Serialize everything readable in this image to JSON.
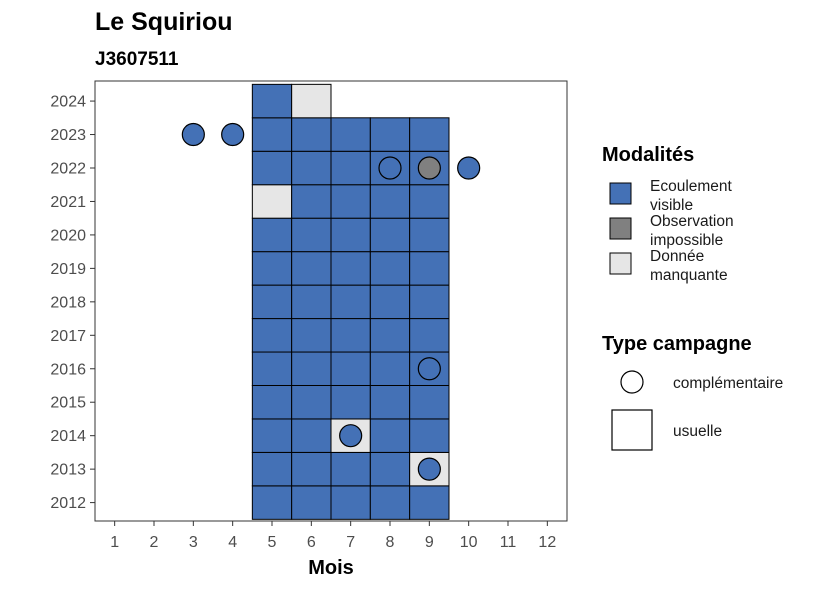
{
  "chart_data": {
    "type": "heatmap",
    "title": "Le Squiriou",
    "subtitle": "J3607511",
    "xlabel": "Mois",
    "ylabel": "",
    "x_ticks": [
      1,
      2,
      3,
      4,
      5,
      6,
      7,
      8,
      9,
      10,
      11,
      12
    ],
    "y_ticks": [
      2012,
      2013,
      2014,
      2015,
      2016,
      2017,
      2018,
      2019,
      2020,
      2021,
      2022,
      2023,
      2024
    ],
    "xlim": [
      0.5,
      12.5
    ],
    "ylim": [
      2011.45,
      2024.6
    ],
    "grid": false,
    "colors": {
      "ecoulement_visible": "#4471b6",
      "observation_impossible": "#808080",
      "donnee_manquante": "#e6e6e6"
    },
    "legend_modalites": {
      "title": "Modalités",
      "items": [
        {
          "key": "ecoulement_visible",
          "line1": "Ecoulement",
          "line2": "visible"
        },
        {
          "key": "observation_impossible",
          "line1": "Observation",
          "line2": "impossible"
        },
        {
          "key": "donnee_manquante",
          "line1": "Donnée",
          "line2": "manquante"
        }
      ]
    },
    "legend_type": {
      "title": "Type campagne",
      "items": [
        {
          "shape": "circle",
          "label": "complémentaire"
        },
        {
          "shape": "square",
          "label": "usuelle"
        }
      ]
    },
    "usuelle": [
      {
        "year": 2012,
        "month": 5,
        "m": "ecoulement_visible"
      },
      {
        "year": 2012,
        "month": 6,
        "m": "ecoulement_visible"
      },
      {
        "year": 2012,
        "month": 7,
        "m": "ecoulement_visible"
      },
      {
        "year": 2012,
        "month": 8,
        "m": "ecoulement_visible"
      },
      {
        "year": 2012,
        "month": 9,
        "m": "ecoulement_visible"
      },
      {
        "year": 2013,
        "month": 5,
        "m": "ecoulement_visible"
      },
      {
        "year": 2013,
        "month": 6,
        "m": "ecoulement_visible"
      },
      {
        "year": 2013,
        "month": 7,
        "m": "ecoulement_visible"
      },
      {
        "year": 2013,
        "month": 8,
        "m": "ecoulement_visible"
      },
      {
        "year": 2013,
        "month": 9,
        "m": "donnee_manquante"
      },
      {
        "year": 2014,
        "month": 5,
        "m": "ecoulement_visible"
      },
      {
        "year": 2014,
        "month": 6,
        "m": "ecoulement_visible"
      },
      {
        "year": 2014,
        "month": 7,
        "m": "donnee_manquante"
      },
      {
        "year": 2014,
        "month": 8,
        "m": "ecoulement_visible"
      },
      {
        "year": 2014,
        "month": 9,
        "m": "ecoulement_visible"
      },
      {
        "year": 2015,
        "month": 5,
        "m": "ecoulement_visible"
      },
      {
        "year": 2015,
        "month": 6,
        "m": "ecoulement_visible"
      },
      {
        "year": 2015,
        "month": 7,
        "m": "ecoulement_visible"
      },
      {
        "year": 2015,
        "month": 8,
        "m": "ecoulement_visible"
      },
      {
        "year": 2015,
        "month": 9,
        "m": "ecoulement_visible"
      },
      {
        "year": 2016,
        "month": 5,
        "m": "ecoulement_visible"
      },
      {
        "year": 2016,
        "month": 6,
        "m": "ecoulement_visible"
      },
      {
        "year": 2016,
        "month": 7,
        "m": "ecoulement_visible"
      },
      {
        "year": 2016,
        "month": 8,
        "m": "ecoulement_visible"
      },
      {
        "year": 2016,
        "month": 9,
        "m": "ecoulement_visible"
      },
      {
        "year": 2017,
        "month": 5,
        "m": "ecoulement_visible"
      },
      {
        "year": 2017,
        "month": 6,
        "m": "ecoulement_visible"
      },
      {
        "year": 2017,
        "month": 7,
        "m": "ecoulement_visible"
      },
      {
        "year": 2017,
        "month": 8,
        "m": "ecoulement_visible"
      },
      {
        "year": 2017,
        "month": 9,
        "m": "ecoulement_visible"
      },
      {
        "year": 2018,
        "month": 5,
        "m": "ecoulement_visible"
      },
      {
        "year": 2018,
        "month": 6,
        "m": "ecoulement_visible"
      },
      {
        "year": 2018,
        "month": 7,
        "m": "ecoulement_visible"
      },
      {
        "year": 2018,
        "month": 8,
        "m": "ecoulement_visible"
      },
      {
        "year": 2018,
        "month": 9,
        "m": "ecoulement_visible"
      },
      {
        "year": 2019,
        "month": 5,
        "m": "ecoulement_visible"
      },
      {
        "year": 2019,
        "month": 6,
        "m": "ecoulement_visible"
      },
      {
        "year": 2019,
        "month": 7,
        "m": "ecoulement_visible"
      },
      {
        "year": 2019,
        "month": 8,
        "m": "ecoulement_visible"
      },
      {
        "year": 2019,
        "month": 9,
        "m": "ecoulement_visible"
      },
      {
        "year": 2020,
        "month": 5,
        "m": "ecoulement_visible"
      },
      {
        "year": 2020,
        "month": 6,
        "m": "ecoulement_visible"
      },
      {
        "year": 2020,
        "month": 7,
        "m": "ecoulement_visible"
      },
      {
        "year": 2020,
        "month": 8,
        "m": "ecoulement_visible"
      },
      {
        "year": 2020,
        "month": 9,
        "m": "ecoulement_visible"
      },
      {
        "year": 2021,
        "month": 5,
        "m": "donnee_manquante"
      },
      {
        "year": 2021,
        "month": 6,
        "m": "ecoulement_visible"
      },
      {
        "year": 2021,
        "month": 7,
        "m": "ecoulement_visible"
      },
      {
        "year": 2021,
        "month": 8,
        "m": "ecoulement_visible"
      },
      {
        "year": 2021,
        "month": 9,
        "m": "ecoulement_visible"
      },
      {
        "year": 2022,
        "month": 5,
        "m": "ecoulement_visible"
      },
      {
        "year": 2022,
        "month": 6,
        "m": "ecoulement_visible"
      },
      {
        "year": 2022,
        "month": 7,
        "m": "ecoulement_visible"
      },
      {
        "year": 2022,
        "month": 8,
        "m": "ecoulement_visible"
      },
      {
        "year": 2022,
        "month": 9,
        "m": "ecoulement_visible"
      },
      {
        "year": 2023,
        "month": 5,
        "m": "ecoulement_visible"
      },
      {
        "year": 2023,
        "month": 6,
        "m": "ecoulement_visible"
      },
      {
        "year": 2023,
        "month": 7,
        "m": "ecoulement_visible"
      },
      {
        "year": 2023,
        "month": 8,
        "m": "ecoulement_visible"
      },
      {
        "year": 2023,
        "month": 9,
        "m": "ecoulement_visible"
      },
      {
        "year": 2024,
        "month": 5,
        "m": "ecoulement_visible"
      },
      {
        "year": 2024,
        "month": 6,
        "m": "donnee_manquante"
      }
    ],
    "complementaire": [
      {
        "year": 2023,
        "month": 3,
        "m": "ecoulement_visible"
      },
      {
        "year": 2023,
        "month": 4,
        "m": "ecoulement_visible"
      },
      {
        "year": 2022,
        "month": 8,
        "m": "ecoulement_visible"
      },
      {
        "year": 2022,
        "month": 9,
        "m": "observation_impossible"
      },
      {
        "year": 2022,
        "month": 10,
        "m": "ecoulement_visible"
      },
      {
        "year": 2016,
        "month": 9,
        "m": "ecoulement_visible"
      },
      {
        "year": 2014,
        "month": 7,
        "m": "ecoulement_visible"
      },
      {
        "year": 2013,
        "month": 9,
        "m": "ecoulement_visible"
      }
    ]
  }
}
